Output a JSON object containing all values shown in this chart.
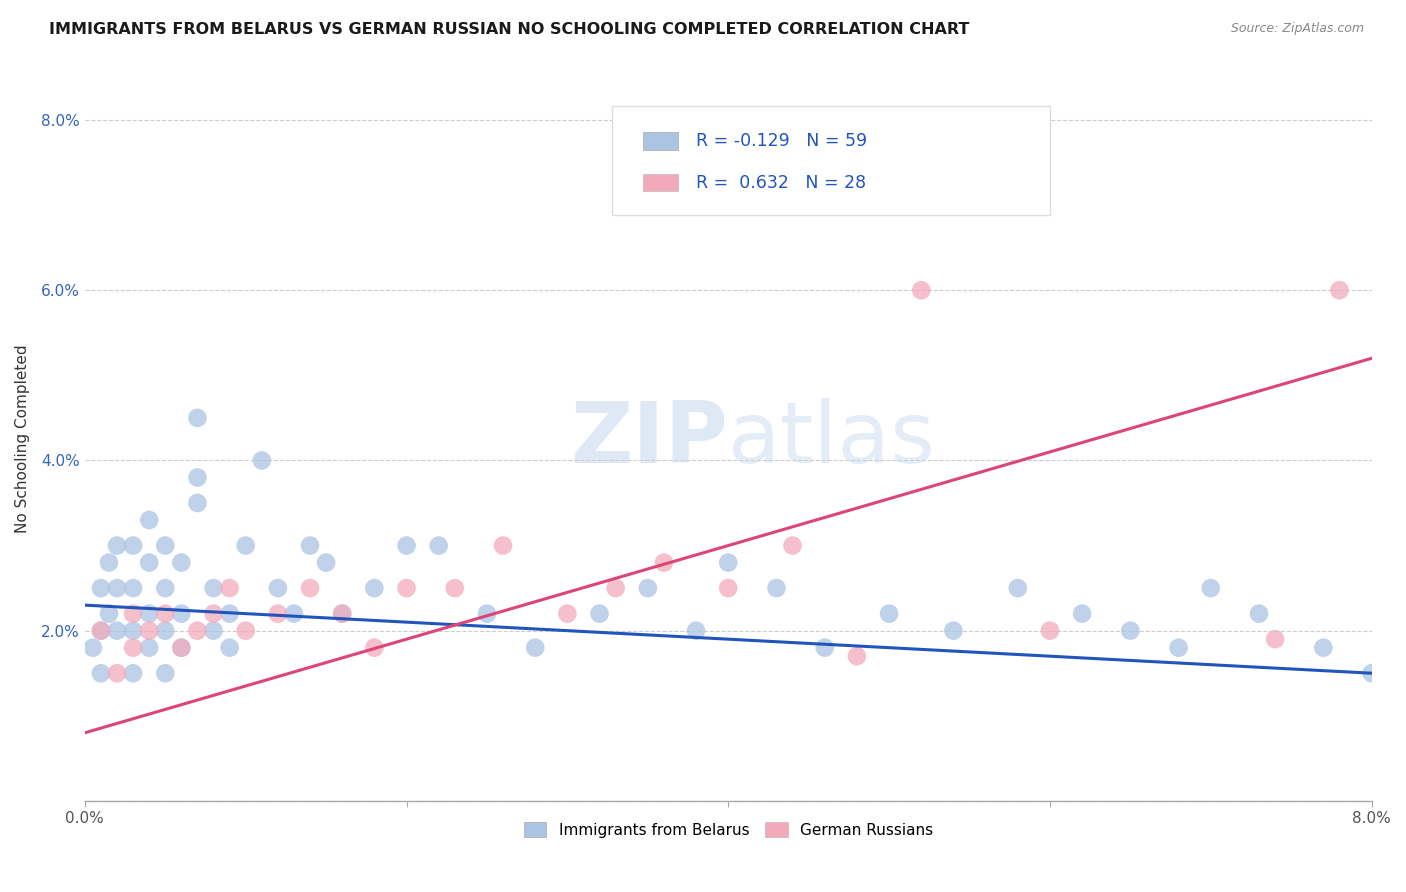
{
  "title": "IMMIGRANTS FROM BELARUS VS GERMAN RUSSIAN NO SCHOOLING COMPLETED CORRELATION CHART",
  "source": "Source: ZipAtlas.com",
  "ylabel": "No Schooling Completed",
  "xlim": [
    0.0,
    0.08
  ],
  "ylim": [
    0.0,
    0.085
  ],
  "blue_color": "#aac4e2",
  "pink_color": "#f2aabb",
  "blue_line_color": "#2255bb",
  "pink_line_color": "#dd4477",
  "blue_R": -0.129,
  "blue_N": 59,
  "pink_R": 0.632,
  "pink_N": 28,
  "legend_label_blue": "Immigrants from Belarus",
  "legend_label_pink": "German Russians",
  "blue_line_start_y": 0.023,
  "blue_line_end_y": 0.015,
  "pink_line_start_y": 0.008,
  "pink_line_end_y": 0.052,
  "blue_scatter_x": [
    0.0005,
    0.001,
    0.001,
    0.001,
    0.0015,
    0.0015,
    0.002,
    0.002,
    0.002,
    0.003,
    0.003,
    0.003,
    0.003,
    0.004,
    0.004,
    0.004,
    0.004,
    0.005,
    0.005,
    0.005,
    0.005,
    0.006,
    0.006,
    0.006,
    0.007,
    0.007,
    0.007,
    0.008,
    0.008,
    0.009,
    0.009,
    0.01,
    0.011,
    0.012,
    0.013,
    0.014,
    0.015,
    0.016,
    0.018,
    0.02,
    0.022,
    0.025,
    0.028,
    0.032,
    0.035,
    0.038,
    0.04,
    0.043,
    0.046,
    0.05,
    0.054,
    0.058,
    0.062,
    0.065,
    0.068,
    0.07,
    0.073,
    0.077,
    0.08
  ],
  "blue_scatter_y": [
    0.018,
    0.015,
    0.02,
    0.025,
    0.022,
    0.028,
    0.02,
    0.025,
    0.03,
    0.015,
    0.02,
    0.025,
    0.03,
    0.018,
    0.022,
    0.028,
    0.033,
    0.015,
    0.02,
    0.025,
    0.03,
    0.018,
    0.022,
    0.028,
    0.035,
    0.045,
    0.038,
    0.02,
    0.025,
    0.018,
    0.022,
    0.03,
    0.04,
    0.025,
    0.022,
    0.03,
    0.028,
    0.022,
    0.025,
    0.03,
    0.03,
    0.022,
    0.018,
    0.022,
    0.025,
    0.02,
    0.028,
    0.025,
    0.018,
    0.022,
    0.02,
    0.025,
    0.022,
    0.02,
    0.018,
    0.025,
    0.022,
    0.018,
    0.015
  ],
  "pink_scatter_x": [
    0.001,
    0.002,
    0.003,
    0.003,
    0.004,
    0.005,
    0.006,
    0.007,
    0.008,
    0.009,
    0.01,
    0.012,
    0.014,
    0.016,
    0.018,
    0.02,
    0.023,
    0.026,
    0.03,
    0.033,
    0.036,
    0.04,
    0.044,
    0.048,
    0.052,
    0.06,
    0.074,
    0.078
  ],
  "pink_scatter_y": [
    0.02,
    0.015,
    0.018,
    0.022,
    0.02,
    0.022,
    0.018,
    0.02,
    0.022,
    0.025,
    0.02,
    0.022,
    0.025,
    0.022,
    0.018,
    0.025,
    0.025,
    0.03,
    0.022,
    0.025,
    0.028,
    0.025,
    0.03,
    0.017,
    0.06,
    0.02,
    0.019,
    0.06
  ]
}
